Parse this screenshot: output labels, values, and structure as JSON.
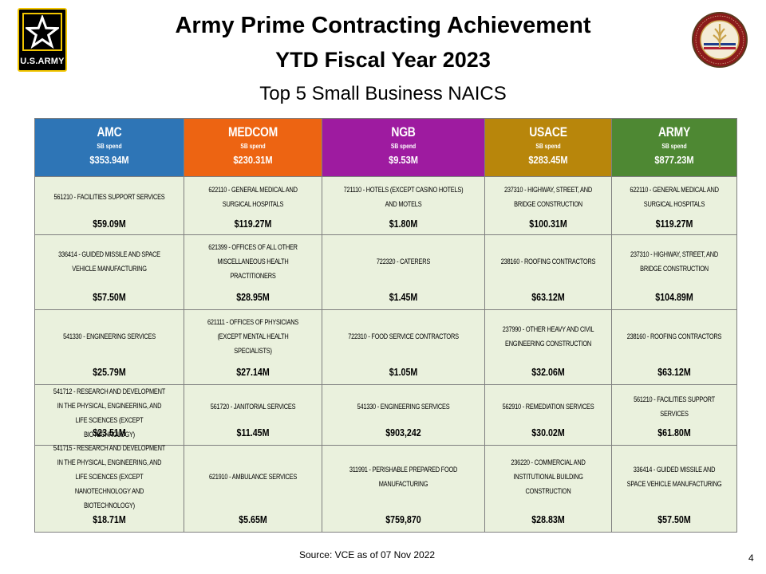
{
  "header": {
    "title_line1": "Army Prime Contracting Achievement",
    "title_line2": "YTD Fiscal Year 2023",
    "subtitle": "Top 5 Small Business NAICS",
    "logo_text": "U.S.ARMY"
  },
  "colors": {
    "AMC": "#2e75b6",
    "MEDCOM": "#ed6412",
    "NGB": "#9e1ba0",
    "USACE": "#b8860b",
    "ARMY": "#4e8833",
    "cell_bg": "#eaf1dd"
  },
  "table": {
    "columns": [
      {
        "name": "AMC",
        "label": "SB spend",
        "total": "$353.94M"
      },
      {
        "name": "MEDCOM",
        "label": "SB spend",
        "total": "$230.31M"
      },
      {
        "name": "NGB",
        "label": "SB spend",
        "total": "$9.53M"
      },
      {
        "name": "USACE",
        "label": "SB spend",
        "total": "$283.45M"
      },
      {
        "name": "ARMY",
        "label": "SB spend",
        "total": "$877.23M"
      }
    ],
    "rows": [
      [
        {
          "naics": "561210 - FACILITIES SUPPORT SERVICES",
          "amount": "$59.09M"
        },
        {
          "naics": "622110 - GENERAL MEDICAL AND SURGICAL HOSPITALS",
          "amount": "$119.27M"
        },
        {
          "naics": "721110 - HOTELS (EXCEPT CASINO HOTELS) AND MOTELS",
          "amount": "$1.80M"
        },
        {
          "naics": "237310 - HIGHWAY, STREET, AND BRIDGE CONSTRUCTION",
          "amount": "$100.31M"
        },
        {
          "naics": "622110 - GENERAL MEDICAL AND SURGICAL HOSPITALS",
          "amount": "$119.27M"
        }
      ],
      [
        {
          "naics": "336414 - GUIDED MISSILE AND SPACE VEHICLE MANUFACTURING",
          "amount": "$57.50M"
        },
        {
          "naics": "621399 - OFFICES OF ALL OTHER MISCELLANEOUS HEALTH PRACTITIONERS",
          "amount": "$28.95M"
        },
        {
          "naics": "722320 - CATERERS",
          "amount": "$1.45M"
        },
        {
          "naics": "238160 - ROOFING CONTRACTORS",
          "amount": "$63.12M"
        },
        {
          "naics": "237310 - HIGHWAY, STREET, AND BRIDGE CONSTRUCTION",
          "amount": "$104.89M"
        }
      ],
      [
        {
          "naics": "541330 - ENGINEERING SERVICES",
          "amount": "$25.79M"
        },
        {
          "naics": "621111 - OFFICES OF PHYSICIANS (EXCEPT MENTAL HEALTH SPECIALISTS)",
          "amount": "$27.14M"
        },
        {
          "naics": "722310 - FOOD SERVICE CONTRACTORS",
          "amount": "$1.05M"
        },
        {
          "naics": "237990 - OTHER HEAVY AND CIVIL ENGINEERING CONSTRUCTION",
          "amount": "$32.06M"
        },
        {
          "naics": "238160 - ROOFING CONTRACTORS",
          "amount": "$63.12M"
        }
      ],
      [
        {
          "naics": "541712 - RESEARCH AND DEVELOPMENT IN THE PHYSICAL, ENGINEERING, AND LIFE SCIENCES (EXCEPT BIOTECHNOLOGY)",
          "amount": "$23.51M"
        },
        {
          "naics": "561720 - JANITORIAL SERVICES",
          "amount": "$11.45M"
        },
        {
          "naics": "541330 - ENGINEERING SERVICES",
          "amount": "$903,242"
        },
        {
          "naics": "562910 - REMEDIATION SERVICES",
          "amount": "$30.02M"
        },
        {
          "naics": "561210 - FACILITIES SUPPORT SERVICES",
          "amount": "$61.80M"
        }
      ],
      [
        {
          "naics": "541715 - RESEARCH AND DEVELOPMENT IN THE PHYSICAL, ENGINEERING, AND LIFE SCIENCES (EXCEPT NANOTECHNOLOGY AND BIOTECHNOLOGY)",
          "amount": "$18.71M"
        },
        {
          "naics": "621910 - AMBULANCE SERVICES",
          "amount": "$5.65M"
        },
        {
          "naics": "311991 - PERISHABLE PREPARED FOOD MANUFACTURING",
          "amount": "$759,870"
        },
        {
          "naics": "236220 - COMMERCIAL AND INSTITUTIONAL BUILDING CONSTRUCTION",
          "amount": "$28.83M"
        },
        {
          "naics": "336414 - GUIDED MISSILE AND SPACE VEHICLE MANUFACTURING",
          "amount": "$57.50M"
        }
      ]
    ]
  },
  "footer": {
    "source": "Source: VCE as of 07 Nov 2022",
    "page_number": "4"
  }
}
